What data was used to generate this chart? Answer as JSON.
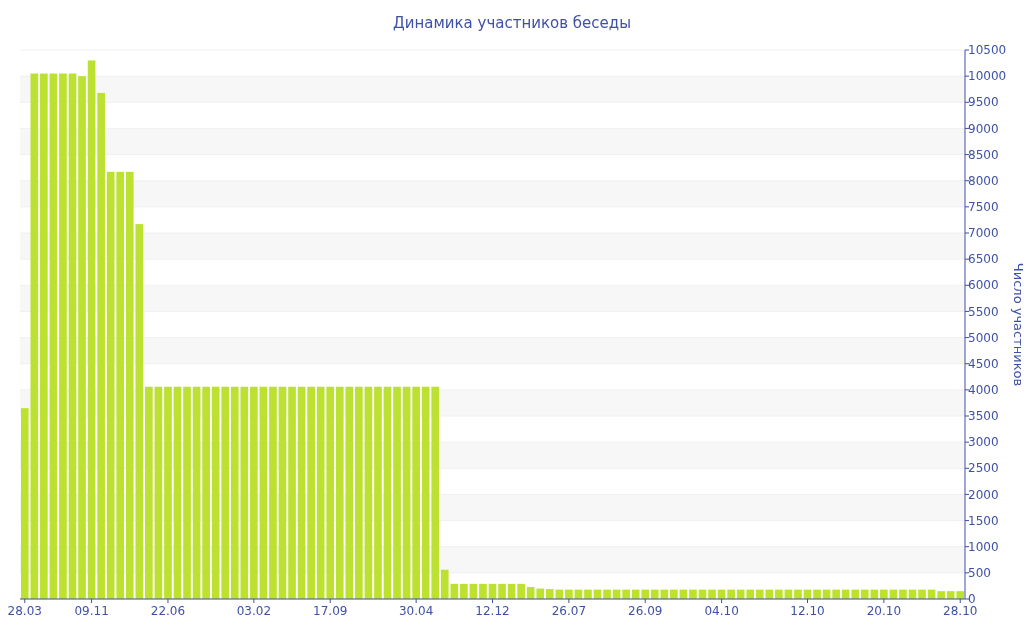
{
  "chart_data": {
    "type": "bar",
    "title": "Динамика участников беседы",
    "ylabel": "Число участников",
    "color": "#bde130",
    "categories": [
      "28.03",
      null,
      null,
      null,
      null,
      null,
      null,
      "09.11",
      null,
      null,
      null,
      null,
      null,
      null,
      null,
      "22.06",
      null,
      null,
      null,
      null,
      null,
      null,
      null,
      null,
      "03.02",
      null,
      null,
      null,
      null,
      null,
      null,
      null,
      "17.09",
      null,
      null,
      null,
      null,
      null,
      null,
      null,
      null,
      "30.04",
      null,
      null,
      null,
      null,
      null,
      null,
      null,
      "12.12",
      null,
      null,
      null,
      null,
      null,
      null,
      null,
      "26.07",
      null,
      null,
      null,
      null,
      null,
      null,
      null,
      "26.09",
      null,
      null,
      null,
      null,
      null,
      null,
      null,
      "04.10",
      null,
      null,
      null,
      null,
      null,
      null,
      null,
      null,
      "12.10",
      null,
      null,
      null,
      null,
      null,
      null,
      null,
      "20.10",
      null,
      null,
      null,
      null,
      null,
      null,
      null,
      "28.10"
    ],
    "values": [
      3650,
      10050,
      10050,
      10050,
      10050,
      10050,
      10000,
      10300,
      9680,
      8170,
      8170,
      8170,
      7170,
      4060,
      4060,
      4060,
      4060,
      4060,
      4060,
      4060,
      4060,
      4060,
      4060,
      4060,
      4060,
      4060,
      4060,
      4060,
      4060,
      4060,
      4060,
      4060,
      4060,
      4060,
      4060,
      4060,
      4060,
      4060,
      4060,
      4060,
      4060,
      4060,
      4060,
      4060,
      560,
      290,
      290,
      290,
      290,
      290,
      290,
      290,
      290,
      230,
      200,
      190,
      180,
      180,
      180,
      180,
      180,
      180,
      180,
      180,
      180,
      180,
      180,
      180,
      180,
      180,
      180,
      180,
      180,
      180,
      180,
      180,
      180,
      180,
      180,
      180,
      180,
      180,
      180,
      180,
      180,
      180,
      180,
      180,
      180,
      180,
      180,
      180,
      180,
      180,
      180,
      180,
      150,
      150,
      150
    ],
    "ylim": [
      0,
      10500
    ],
    "yticks": [
      0,
      500,
      1000,
      1500,
      2000,
      2500,
      3000,
      3500,
      4000,
      4500,
      5000,
      5500,
      6000,
      6500,
      7000,
      7500,
      8000,
      8500,
      9000,
      9500,
      10000,
      10500
    ],
    "grid": "y"
  }
}
